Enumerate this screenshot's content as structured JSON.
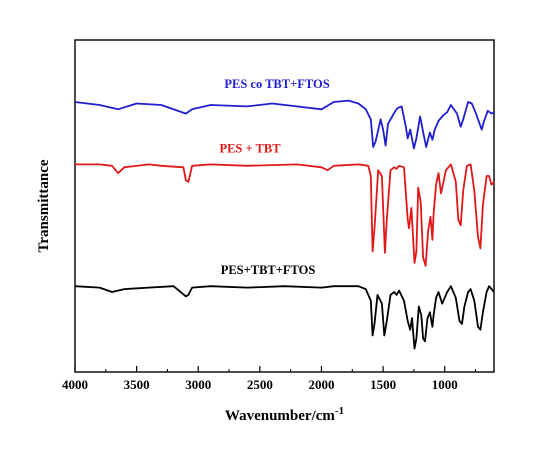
{
  "chart_data": {
    "type": "line",
    "xlabel": "Wavenumber/cm",
    "xlabel_superscript": "-1",
    "ylabel": "Transmittance",
    "xlim": [
      4000,
      600
    ],
    "x_reversed": true,
    "y_ticks_shown": false,
    "grid": false,
    "x_ticks": [
      4000,
      3500,
      3000,
      2500,
      2000,
      1500,
      1000
    ],
    "x_tick_labels": [
      "4000",
      "3500",
      "3000",
      "2500",
      "2000",
      "1500",
      "1000"
    ],
    "ylim": [
      0,
      10
    ],
    "series": [
      {
        "name": "PES co TBT+FTOS",
        "color": "#1f1fd0",
        "baseline": 8.55,
        "points": [
          [
            4000,
            8.55
          ],
          [
            3800,
            8.45
          ],
          [
            3650,
            8.3
          ],
          [
            3500,
            8.5
          ],
          [
            3300,
            8.45
          ],
          [
            3100,
            8.15
          ],
          [
            3050,
            8.3
          ],
          [
            2900,
            8.45
          ],
          [
            2600,
            8.4
          ],
          [
            2400,
            8.5
          ],
          [
            2200,
            8.4
          ],
          [
            2000,
            8.3
          ],
          [
            1900,
            8.55
          ],
          [
            1780,
            8.6
          ],
          [
            1700,
            8.5
          ],
          [
            1640,
            8.3
          ],
          [
            1600,
            7.95
          ],
          [
            1580,
            7.0
          ],
          [
            1560,
            7.2
          ],
          [
            1520,
            7.95
          ],
          [
            1500,
            7.6
          ],
          [
            1480,
            7.05
          ],
          [
            1460,
            7.8
          ],
          [
            1400,
            8.25
          ],
          [
            1380,
            8.35
          ],
          [
            1350,
            8.4
          ],
          [
            1320,
            7.8
          ],
          [
            1300,
            7.3
          ],
          [
            1280,
            7.6
          ],
          [
            1250,
            6.95
          ],
          [
            1230,
            7.3
          ],
          [
            1200,
            8.05
          ],
          [
            1170,
            7.4
          ],
          [
            1150,
            7.0
          ],
          [
            1120,
            7.5
          ],
          [
            1100,
            7.25
          ],
          [
            1080,
            7.6
          ],
          [
            1050,
            7.9
          ],
          [
            1010,
            8.1
          ],
          [
            980,
            8.2
          ],
          [
            950,
            8.45
          ],
          [
            900,
            8.15
          ],
          [
            870,
            7.7
          ],
          [
            850,
            7.95
          ],
          [
            810,
            8.55
          ],
          [
            780,
            8.5
          ],
          [
            750,
            8.2
          ],
          [
            700,
            7.6
          ],
          [
            680,
            7.9
          ],
          [
            650,
            8.25
          ],
          [
            620,
            8.15
          ],
          [
            600,
            8.2
          ]
        ]
      },
      {
        "name": "PES + TBT",
        "color": "#e01818",
        "baseline": 6.4,
        "points": [
          [
            4000,
            6.4
          ],
          [
            3800,
            6.4
          ],
          [
            3700,
            6.35
          ],
          [
            3650,
            6.1
          ],
          [
            3600,
            6.3
          ],
          [
            3400,
            6.4
          ],
          [
            3300,
            6.35
          ],
          [
            3120,
            6.3
          ],
          [
            3100,
            5.85
          ],
          [
            3080,
            5.8
          ],
          [
            3050,
            6.35
          ],
          [
            2900,
            6.4
          ],
          [
            2600,
            6.35
          ],
          [
            2200,
            6.4
          ],
          [
            2000,
            6.3
          ],
          [
            1950,
            6.2
          ],
          [
            1900,
            6.35
          ],
          [
            1700,
            6.4
          ],
          [
            1620,
            6.35
          ],
          [
            1600,
            6.0
          ],
          [
            1585,
            3.4
          ],
          [
            1570,
            4.2
          ],
          [
            1540,
            6.2
          ],
          [
            1510,
            6.0
          ],
          [
            1485,
            3.35
          ],
          [
            1470,
            4.5
          ],
          [
            1440,
            6.2
          ],
          [
            1410,
            6.3
          ],
          [
            1390,
            6.25
          ],
          [
            1370,
            6.35
          ],
          [
            1330,
            6.3
          ],
          [
            1300,
            4.5
          ],
          [
            1290,
            4.2
          ],
          [
            1270,
            4.9
          ],
          [
            1245,
            3.0
          ],
          [
            1230,
            3.4
          ],
          [
            1215,
            5.6
          ],
          [
            1195,
            5.1
          ],
          [
            1175,
            3.2
          ],
          [
            1155,
            2.9
          ],
          [
            1135,
            4.1
          ],
          [
            1115,
            4.6
          ],
          [
            1100,
            3.8
          ],
          [
            1090,
            4.7
          ],
          [
            1070,
            5.7
          ],
          [
            1050,
            6.1
          ],
          [
            1030,
            5.4
          ],
          [
            1010,
            5.8
          ],
          [
            990,
            6.2
          ],
          [
            950,
            6.4
          ],
          [
            910,
            5.8
          ],
          [
            890,
            4.5
          ],
          [
            870,
            4.3
          ],
          [
            850,
            5.5
          ],
          [
            820,
            6.35
          ],
          [
            790,
            6.4
          ],
          [
            760,
            5.5
          ],
          [
            730,
            3.9
          ],
          [
            710,
            3.5
          ],
          [
            690,
            5.0
          ],
          [
            660,
            6.0
          ],
          [
            640,
            6.0
          ],
          [
            620,
            5.7
          ],
          [
            600,
            5.8
          ]
        ]
      },
      {
        "name": "PES+TBT+FTOS",
        "color": "#000000",
        "baseline": 2.2,
        "points": [
          [
            4000,
            2.2
          ],
          [
            3800,
            2.15
          ],
          [
            3700,
            2.0
          ],
          [
            3600,
            2.1
          ],
          [
            3400,
            2.15
          ],
          [
            3200,
            2.2
          ],
          [
            3100,
            1.85
          ],
          [
            3080,
            1.9
          ],
          [
            3050,
            2.15
          ],
          [
            2900,
            2.2
          ],
          [
            2600,
            2.15
          ],
          [
            2300,
            2.2
          ],
          [
            2000,
            2.15
          ],
          [
            1900,
            2.2
          ],
          [
            1700,
            2.2
          ],
          [
            1640,
            2.1
          ],
          [
            1600,
            1.7
          ],
          [
            1585,
            0.5
          ],
          [
            1570,
            0.9
          ],
          [
            1545,
            1.9
          ],
          [
            1510,
            1.6
          ],
          [
            1490,
            0.5
          ],
          [
            1470,
            1.0
          ],
          [
            1440,
            1.9
          ],
          [
            1410,
            2.0
          ],
          [
            1390,
            1.9
          ],
          [
            1370,
            2.05
          ],
          [
            1330,
            1.7
          ],
          [
            1300,
            1.0
          ],
          [
            1280,
            0.7
          ],
          [
            1265,
            1.1
          ],
          [
            1245,
            0.05
          ],
          [
            1230,
            0.4
          ],
          [
            1210,
            1.5
          ],
          [
            1190,
            1.2
          ],
          [
            1175,
            0.4
          ],
          [
            1160,
            0.3
          ],
          [
            1140,
            1.1
          ],
          [
            1120,
            1.3
          ],
          [
            1100,
            0.8
          ],
          [
            1090,
            1.2
          ],
          [
            1070,
            1.8
          ],
          [
            1050,
            2.0
          ],
          [
            1020,
            1.6
          ],
          [
            1000,
            1.8
          ],
          [
            980,
            2.0
          ],
          [
            950,
            2.2
          ],
          [
            910,
            1.8
          ],
          [
            880,
            1.0
          ],
          [
            860,
            0.9
          ],
          [
            840,
            1.5
          ],
          [
            810,
            2.0
          ],
          [
            790,
            2.1
          ],
          [
            760,
            1.7
          ],
          [
            730,
            0.8
          ],
          [
            710,
            0.7
          ],
          [
            690,
            1.3
          ],
          [
            660,
            2.0
          ],
          [
            640,
            2.2
          ],
          [
            620,
            2.1
          ],
          [
            600,
            2.0
          ]
        ]
      }
    ]
  }
}
